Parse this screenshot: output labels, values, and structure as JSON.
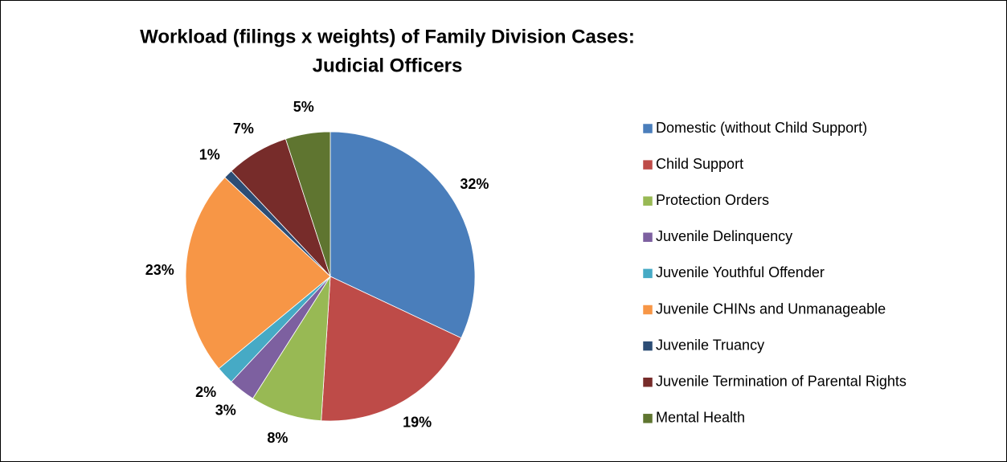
{
  "chart_data": {
    "type": "pie",
    "title": [
      "Workload (filings x weights) of Family Division Cases:",
      "Judicial Officers"
    ],
    "categories": [
      "Domestic (without Child Support)",
      "Child Support",
      "Protection Orders",
      "Juvenile Delinquency",
      "Juvenile Youthful Offender",
      "Juvenile CHINs and Unmanageable",
      "Juvenile Truancy",
      "Juvenile Termination of Parental Rights",
      "Mental Health"
    ],
    "values": [
      32,
      19,
      8,
      3,
      2,
      23,
      1,
      7,
      5
    ],
    "value_labels": [
      "32%",
      "19%",
      "8%",
      "3%",
      "2%",
      "23%",
      "1%",
      "7%",
      "5%"
    ],
    "colors": [
      "#4a7ebb",
      "#be4b48",
      "#98b954",
      "#7d60a0",
      "#46aac5",
      "#f79646",
      "#2c4d75",
      "#772c2a",
      "#5f7530"
    ],
    "legend": "right"
  }
}
